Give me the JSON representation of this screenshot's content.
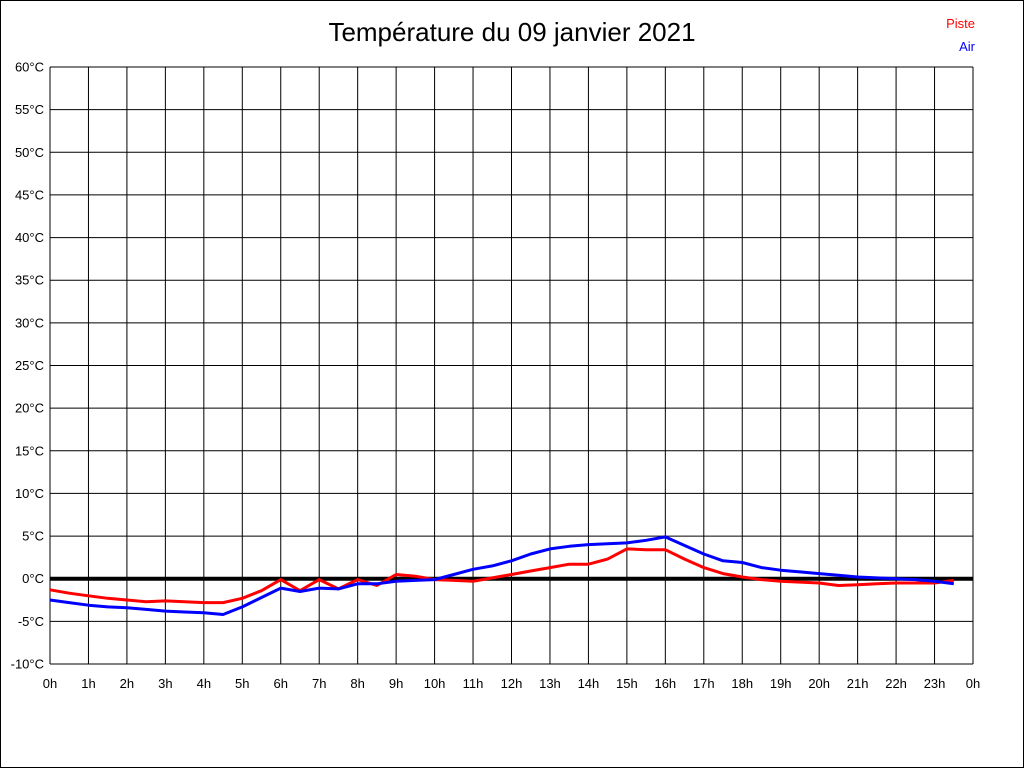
{
  "page": {
    "background": "#ffffff",
    "border_color": "#000000"
  },
  "chart_data": {
    "type": "line",
    "title": "Température du 09 janvier 2021",
    "legend_position": "top-right",
    "grid": true,
    "zero_line": 0,
    "legend": [
      {
        "name": "Piste",
        "color": "#ff0000"
      },
      {
        "name": "Air",
        "color": "#0000ff"
      }
    ],
    "x_axis": {
      "min": 0,
      "max": 24,
      "unit": "h",
      "tick_labels": [
        "0h",
        "1h",
        "2h",
        "3h",
        "4h",
        "5h",
        "6h",
        "7h",
        "8h",
        "9h",
        "10h",
        "11h",
        "12h",
        "13h",
        "14h",
        "15h",
        "16h",
        "17h",
        "18h",
        "19h",
        "20h",
        "21h",
        "22h",
        "23h",
        "0h"
      ]
    },
    "y_axis": {
      "min": -10,
      "max": 60,
      "step": 5,
      "unit": "°C",
      "tick_labels": [
        "60°C",
        "55°C",
        "50°C",
        "45°C",
        "40°C",
        "35°C",
        "30°C",
        "25°C",
        "20°C",
        "15°C",
        "10°C",
        "5°C",
        "0°C",
        "-5°C",
        "-10°C"
      ]
    },
    "x": [
      0,
      0.5,
      1,
      1.5,
      2,
      2.5,
      3,
      3.5,
      4,
      4.5,
      5,
      5.5,
      6,
      6.5,
      7,
      7.5,
      8,
      8.5,
      9,
      9.5,
      10,
      10.5,
      11,
      11.5,
      12,
      12.5,
      13,
      13.5,
      14,
      14.5,
      15,
      15.5,
      16,
      16.5,
      17,
      17.5,
      18,
      18.5,
      19,
      19.5,
      20,
      20.5,
      21,
      21.5,
      22,
      22.5,
      23,
      23.5
    ],
    "series": [
      {
        "name": "Piste",
        "color": "#ff0000",
        "values": [
          -1.3,
          -1.7,
          -2.0,
          -2.3,
          -2.5,
          -2.7,
          -2.6,
          -2.7,
          -2.8,
          -2.8,
          -2.3,
          -1.4,
          -0.1,
          -1.4,
          -0.1,
          -1.2,
          -0.1,
          -0.8,
          0.5,
          0.3,
          -0.1,
          -0.2,
          -0.3,
          0.1,
          0.5,
          0.9,
          1.3,
          1.7,
          1.7,
          2.3,
          3.5,
          3.4,
          3.4,
          2.3,
          1.3,
          0.6,
          0.2,
          -0.1,
          -0.3,
          -0.4,
          -0.5,
          -0.8,
          -0.7,
          -0.6,
          -0.5,
          -0.5,
          -0.5,
          -0.2
        ]
      },
      {
        "name": "Air",
        "color": "#0000ff",
        "values": [
          -2.5,
          -2.8,
          -3.1,
          -3.3,
          -3.4,
          -3.6,
          -3.8,
          -3.9,
          -4.0,
          -4.2,
          -3.3,
          -2.2,
          -1.1,
          -1.5,
          -1.1,
          -1.2,
          -0.6,
          -0.6,
          -0.3,
          -0.2,
          -0.1,
          0.5,
          1.1,
          1.5,
          2.1,
          2.9,
          3.5,
          3.8,
          4.0,
          4.1,
          4.2,
          4.5,
          4.9,
          3.9,
          2.9,
          2.1,
          1.9,
          1.3,
          1.0,
          0.8,
          0.6,
          0.4,
          0.2,
          0.1,
          0.0,
          -0.1,
          -0.3,
          -0.6
        ]
      }
    ]
  }
}
